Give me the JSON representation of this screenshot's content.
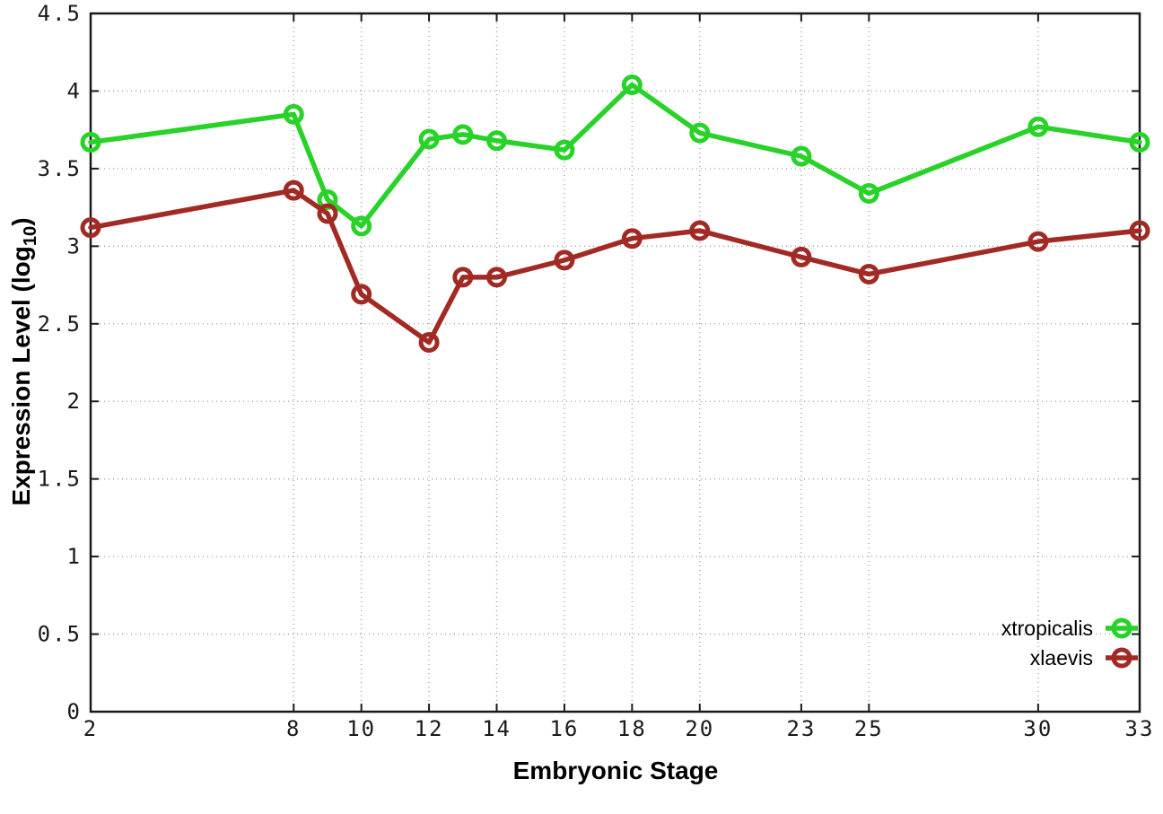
{
  "chart_data": {
    "type": "line",
    "title": "",
    "xlabel": "Embryonic Stage",
    "ylabel_pre": "Expression Level (log",
    "ylabel_sub": "10",
    "ylabel_post": ")",
    "x": [
      2,
      8,
      9,
      10,
      12,
      13,
      14,
      16,
      18,
      20,
      23,
      25,
      30,
      33
    ],
    "series": [
      {
        "name": "xtropicalis",
        "color": "#28d228",
        "values": [
          3.67,
          3.85,
          3.3,
          3.13,
          3.69,
          3.72,
          3.68,
          3.62,
          4.04,
          3.73,
          3.58,
          3.34,
          3.77,
          3.67
        ]
      },
      {
        "name": "xlaevis",
        "color": "#a22a24",
        "values": [
          3.12,
          3.36,
          3.21,
          2.69,
          2.38,
          2.8,
          2.8,
          2.91,
          3.05,
          3.1,
          2.93,
          2.82,
          3.03,
          3.1
        ]
      }
    ],
    "xlim": [
      2,
      33
    ],
    "ylim": [
      0,
      4.5
    ],
    "xticks": {
      "values": [
        2,
        8,
        10,
        12,
        14,
        16,
        18,
        20,
        23,
        25,
        30,
        33
      ],
      "labels": [
        "2",
        "8",
        "10",
        "12",
        "14",
        "16",
        "18",
        "20",
        "23",
        "25",
        "30",
        "33"
      ]
    },
    "yticks": {
      "values": [
        0,
        0.5,
        1,
        1.5,
        2,
        2.5,
        3,
        3.5,
        4,
        4.5
      ],
      "labels": [
        "0",
        "0.5",
        "1",
        "1.5",
        "2",
        "2.5",
        "3",
        "3.5",
        "4",
        "4.5"
      ]
    },
    "grid": true,
    "legend_position": "bottom-right-inside",
    "marker": "open-circle",
    "colors": {
      "background": "#ffffff",
      "axis": "#1a1a1a",
      "grid": "#999999",
      "tick_text": "#1a1a1a"
    }
  }
}
